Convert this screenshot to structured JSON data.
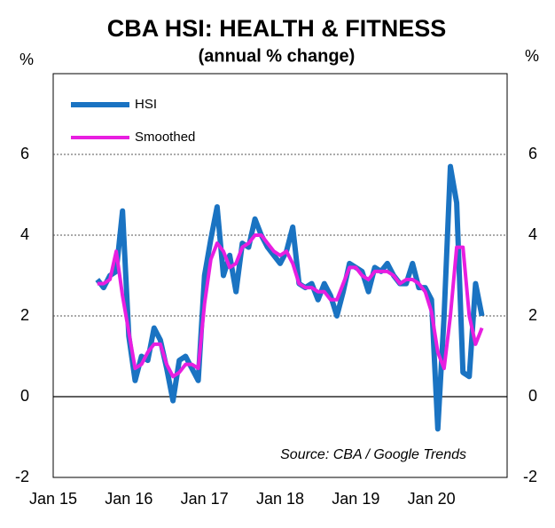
{
  "chart_data": {
    "type": "line",
    "title": "CBA HSI: HEALTH & FITNESS",
    "subtitle": "(annual % change)",
    "y_label": "%",
    "y2_label": "%",
    "annotation": "Source: CBA / Google Trends",
    "categories": [
      "Jan 15",
      null,
      null,
      null,
      null,
      null,
      null,
      null,
      null,
      null,
      null,
      null,
      "Jan 16",
      null,
      null,
      null,
      null,
      null,
      null,
      null,
      null,
      null,
      null,
      null,
      "Jan 17",
      null,
      null,
      null,
      null,
      null,
      null,
      null,
      null,
      null,
      null,
      null,
      "Jan 18",
      null,
      null,
      null,
      null,
      null,
      null,
      null,
      null,
      null,
      null,
      null,
      "Jan 19",
      null,
      null,
      null,
      null,
      null,
      null,
      null,
      null,
      null,
      null,
      null,
      "Jan 20",
      null,
      null,
      null,
      null,
      null,
      null,
      null,
      null,
      null,
      null,
      null,
      null
    ],
    "series": [
      {
        "name": "HSI",
        "color": "#1a73c2",
        "values": [
          null,
          null,
          null,
          null,
          null,
          null,
          null,
          2.9,
          2.7,
          3.0,
          3.1,
          4.6,
          1.5,
          0.4,
          1.0,
          0.9,
          1.7,
          1.4,
          0.7,
          -0.1,
          0.9,
          1.0,
          0.7,
          0.4,
          3.0,
          3.9,
          4.7,
          3.0,
          3.5,
          2.6,
          3.8,
          3.7,
          4.4,
          4.0,
          3.7,
          3.5,
          3.3,
          3.6,
          4.2,
          2.8,
          2.7,
          2.8,
          2.4,
          2.8,
          2.5,
          2.0,
          2.6,
          3.3,
          3.2,
          3.1,
          2.6,
          3.2,
          3.1,
          3.3,
          3.0,
          2.8,
          2.8,
          3.3,
          2.7,
          2.7,
          2.4,
          -0.8,
          2.0,
          5.7,
          4.8,
          0.6,
          0.5,
          2.8,
          2.0,
          null,
          null,
          null,
          null
        ]
      },
      {
        "name": "Smoothed",
        "color": "#e81ee0",
        "values": [
          null,
          null,
          null,
          null,
          null,
          null,
          null,
          2.8,
          2.8,
          2.9,
          3.6,
          2.5,
          1.6,
          0.7,
          0.8,
          1.1,
          1.3,
          1.3,
          0.8,
          0.5,
          0.6,
          0.8,
          0.8,
          0.7,
          2.3,
          3.4,
          3.8,
          3.6,
          3.2,
          3.3,
          3.7,
          3.8,
          4.0,
          4.0,
          3.8,
          3.6,
          3.5,
          3.6,
          3.3,
          2.8,
          2.7,
          2.7,
          2.6,
          2.6,
          2.4,
          2.4,
          2.8,
          3.2,
          3.2,
          3.0,
          2.9,
          3.1,
          3.1,
          3.1,
          3.0,
          2.8,
          2.9,
          2.9,
          2.8,
          2.6,
          2.1,
          1.1,
          0.7,
          2.0,
          3.7,
          3.7,
          2.0,
          1.3,
          1.7,
          null,
          null,
          null,
          null
        ]
      }
    ],
    "ylim": [
      -2,
      8
    ],
    "yticks": [
      -2,
      0,
      2,
      4,
      6
    ],
    "y2lim": [
      -2,
      8
    ],
    "y2ticks": [
      -2,
      0,
      2,
      4,
      6
    ],
    "grid": true,
    "legend": "upper left"
  }
}
